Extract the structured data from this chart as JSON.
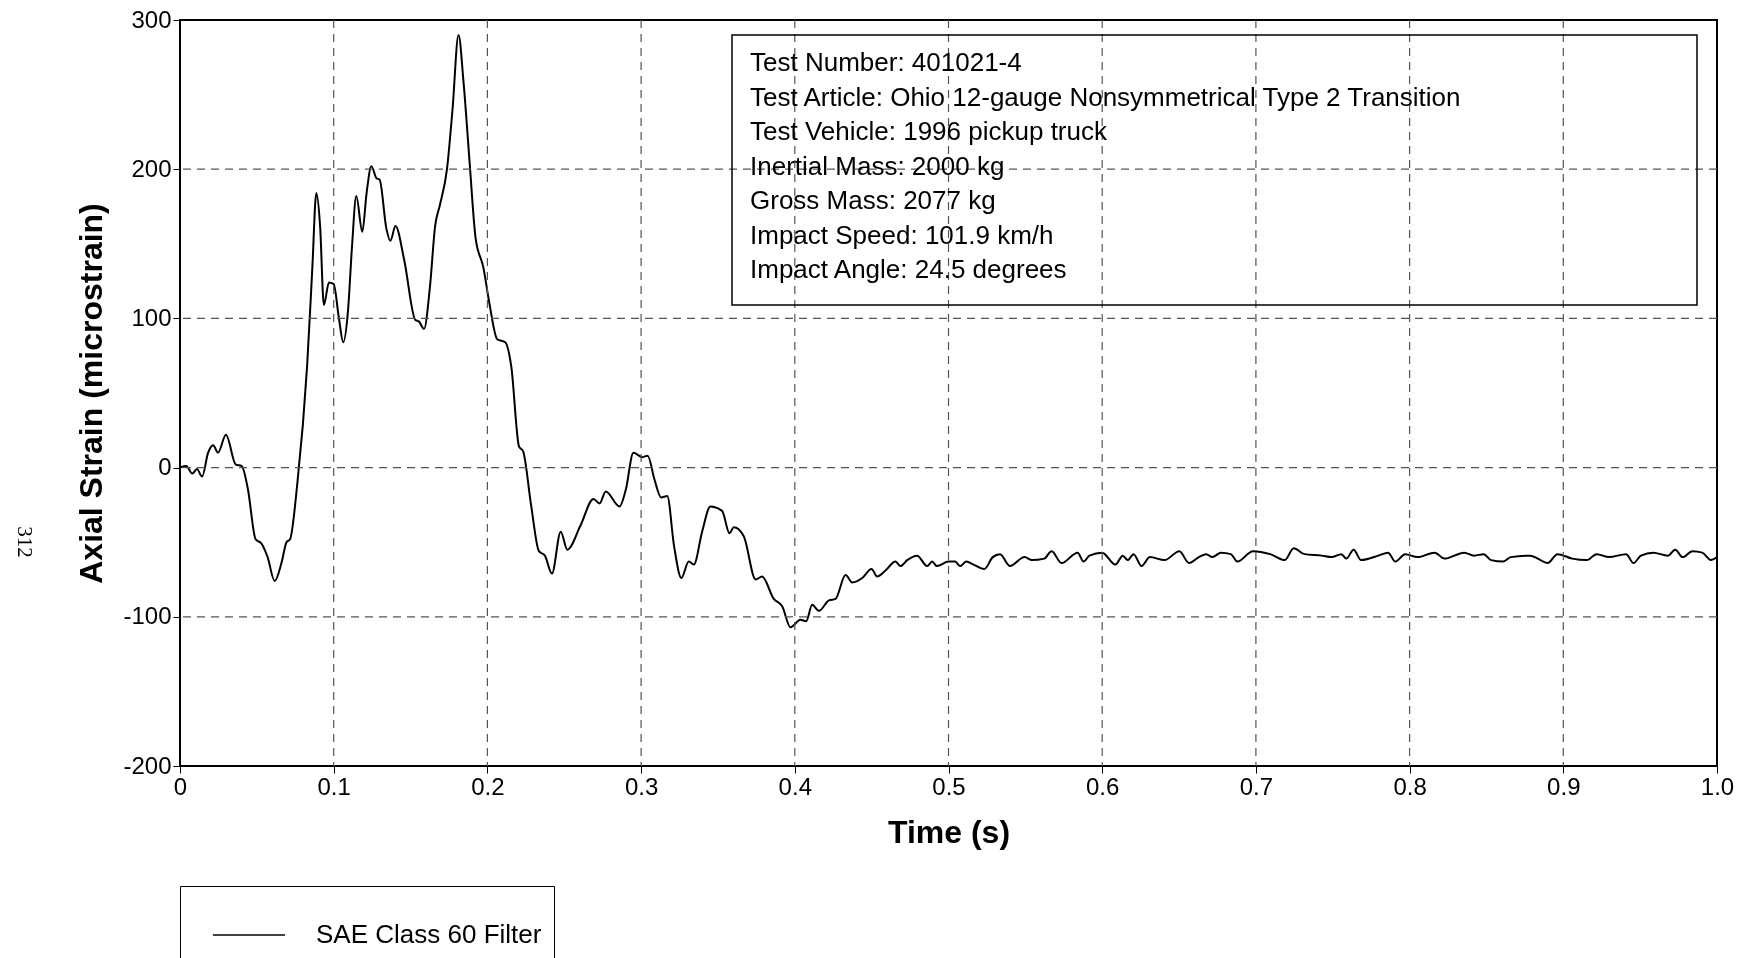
{
  "chart_data": {
    "type": "line",
    "xlabel": "Time (s)",
    "ylabel": "Axial Strain (microstrain)",
    "annotations": [
      "Test Number: 401021-4\nTest Article: Ohio 12-gauge Nonsymmetrical Type 2 Transition\nTest Vehicle: 1996 pickup truck\nInertial Mass: 2000 kg\nGross Mass: 2077 kg\nImpact Speed: 101.9 km/h\nImpact Angle: 24.5 degrees",
      "312"
    ],
    "x": [
      0,
      0.004,
      0.008,
      0.011,
      0.0144,
      0.0183,
      0.0216,
      0.0247,
      0.0299,
      0.0363,
      0.0402,
      0.0441,
      0.0492,
      0.0531,
      0.057,
      0.0616,
      0.066,
      0.0693,
      0.0716,
      0.0763,
      0.0827,
      0.0861,
      0.0887,
      0.0912,
      0.0936,
      0.0969,
      0.1,
      0.1034,
      0.1062,
      0.1093,
      0.1119,
      0.1147,
      0.1186,
      0.1214,
      0.1245,
      0.1278,
      0.1299,
      0.1343,
      0.1369,
      0.1402,
      0.1459,
      0.1531,
      0.1554,
      0.1588,
      0.1626,
      0.166,
      0.1691,
      0.1737,
      0.1773,
      0.1812,
      0.1845,
      0.1884,
      0.1923,
      0.1974,
      0.2013,
      0.2064,
      0.2116,
      0.2155,
      0.2206,
      0.2232,
      0.2284,
      0.2335,
      0.2374,
      0.242,
      0.2477,
      0.252,
      0.2605,
      0.269,
      0.273,
      0.277,
      0.286,
      0.29,
      0.295,
      0.3007,
      0.3043,
      0.3087,
      0.313,
      0.317,
      0.3215,
      0.3262,
      0.331,
      0.3343,
      0.3397,
      0.3451,
      0.3527,
      0.3575,
      0.3603,
      0.3668,
      0.3745,
      0.3787,
      0.3863,
      0.3918,
      0.3972,
      0.4037,
      0.4074,
      0.4113,
      0.4157,
      0.4222,
      0.4265,
      0.433,
      0.4374,
      0.4439,
      0.4499,
      0.4536,
      0.459,
      0.4655,
      0.4688,
      0.4731,
      0.4796,
      0.4861,
      0.4894,
      0.4924,
      0.5,
      0.5043,
      0.5076,
      0.5115,
      0.5163,
      0.5233,
      0.5288,
      0.5335,
      0.5399,
      0.5495,
      0.5543,
      0.5623,
      0.5671,
      0.5735,
      0.584,
      0.5879,
      0.5917,
      0.6,
      0.6086,
      0.6134,
      0.6166,
      0.6204,
      0.6256,
      0.631,
      0.6406,
      0.6502,
      0.6565,
      0.6629,
      0.6677,
      0.6716,
      0.6773,
      0.6837,
      0.6879,
      0.6981,
      0.7093,
      0.7188,
      0.7246,
      0.7316,
      0.7428,
      0.7492,
      0.7556,
      0.7588,
      0.7636,
      0.7684,
      0.7796,
      0.786,
      0.7907,
      0.7971,
      0.8051,
      0.8163,
      0.8227,
      0.8355,
      0.8419,
      0.8482,
      0.853,
      0.861,
      0.8658,
      0.8786,
      0.8834,
      0.8898,
      0.8962,
      0.9058,
      0.9153,
      0.9217,
      0.9297,
      0.9409,
      0.9457,
      0.9505,
      0.9585,
      0.9681,
      0.9728,
      0.9776,
      0.984,
      0.9904,
      0.9962,
      1.0
    ],
    "series": [
      {
        "name": "SAE Class 60 Filter",
        "color": "#000000",
        "values": [
          0,
          1,
          -4,
          -1,
          -6,
          10,
          15,
          10,
          22,
          2,
          1,
          -14,
          -48,
          -51,
          -60,
          -76,
          -64,
          -50,
          -48,
          -11,
          68,
          134,
          184,
          161,
          109,
          124,
          123,
          100,
          84,
          105,
          148,
          182,
          158,
          184,
          202,
          194,
          193,
          160,
          152,
          162,
          139,
          99,
          98,
          93,
          121,
          162,
          176,
          200,
          240,
          290,
          258,
          205,
          154,
          134,
          110,
          86,
          84,
          68,
          14,
          11,
          -25,
          -56,
          -59,
          -71,
          -43,
          -55,
          -39,
          -21,
          -24,
          -16,
          -26,
          -15,
          10,
          7,
          8,
          -8,
          -20,
          -19,
          -53,
          -74,
          -63,
          -65,
          -43,
          -26,
          -29,
          -44,
          -40,
          -46,
          -75,
          -73,
          -88,
          -93,
          -107,
          -102,
          -103,
          -92,
          -96,
          -89,
          -88,
          -72,
          -77,
          -74,
          -68,
          -73,
          -69,
          -63,
          -66,
          -62,
          -59,
          -66,
          -63,
          -66,
          -63,
          -63,
          -66,
          -63,
          -65,
          -68,
          -60,
          -58,
          -66,
          -60,
          -62,
          -61,
          -56,
          -64,
          -57,
          -63,
          -59,
          -57,
          -65,
          -59,
          -62,
          -58,
          -66,
          -60,
          -62,
          -56,
          -64,
          -60,
          -58,
          -60,
          -57,
          -58,
          -63,
          -56,
          -58,
          -62,
          -54,
          -58,
          -59,
          -60,
          -58,
          -61,
          -55,
          -62,
          -59,
          -57,
          -63,
          -58,
          -60,
          -57,
          -61,
          -57,
          -59,
          -58,
          -62,
          -63,
          -60,
          -59,
          -61,
          -64,
          -58,
          -61,
          -62,
          -58,
          -60,
          -58,
          -64,
          -59,
          -57,
          -59,
          -55,
          -60,
          -56,
          -57,
          -62,
          -60
        ]
      }
    ],
    "xlim": [
      0,
      1
    ],
    "xticks": [
      0,
      0.1,
      0.2,
      0.3,
      0.4,
      0.5,
      0.6,
      0.7,
      0.8,
      0.9,
      {
        "value": 1,
        "label": "1.0"
      }
    ],
    "ylim": [
      -200,
      300
    ],
    "yticks": [
      -200,
      -100,
      0,
      100,
      200,
      300
    ],
    "grid": true,
    "legend": "bottom left"
  }
}
